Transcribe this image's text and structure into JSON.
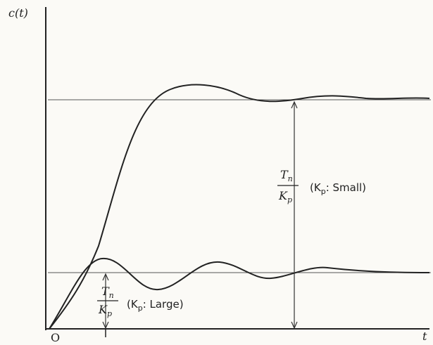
{
  "axes": {
    "y_label": "c(t)",
    "x_label": "t",
    "origin": "O"
  },
  "annotations": [
    {
      "numerator": {
        "base": "T",
        "sub": "n"
      },
      "denominator": {
        "base": "K",
        "sub": "p"
      },
      "condition": {
        "open": "(K",
        "sub": "p",
        "close": ": Small)"
      }
    },
    {
      "numerator": {
        "base": "T",
        "sub": "n"
      },
      "denominator": {
        "base": "K",
        "sub": "p"
      },
      "condition": {
        "open": "(K",
        "sub": "p",
        "close": ": Large)"
      }
    }
  ]
}
